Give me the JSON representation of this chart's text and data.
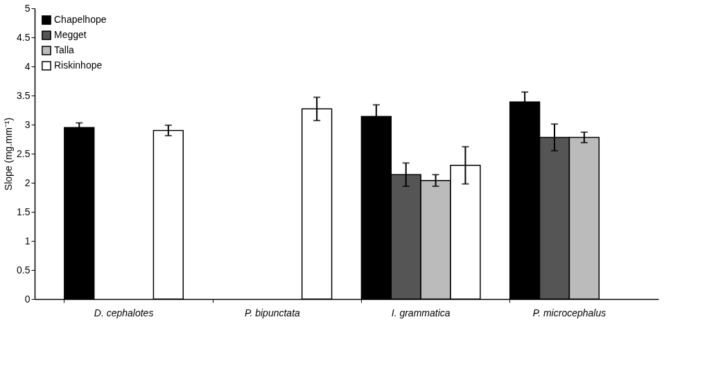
{
  "chart_data": {
    "type": "bar",
    "ylabel": "Slope (mg.mm⁻¹)",
    "categories": [
      "D. cephalotes",
      "P. bipunctata",
      "I. grammatica",
      "P. microcephalus"
    ],
    "series": [
      {
        "name": "Chapelhope",
        "color": "#000000",
        "values": [
          2.95,
          null,
          3.14,
          3.39
        ],
        "errors": [
          0.08,
          null,
          0.2,
          0.17
        ]
      },
      {
        "name": "Megget",
        "color": "#555555",
        "values": [
          null,
          null,
          2.14,
          2.78
        ],
        "errors": [
          null,
          null,
          0.2,
          0.23
        ]
      },
      {
        "name": "Talla",
        "color": "#bbbbbb",
        "values": [
          null,
          null,
          2.04,
          2.78
        ],
        "errors": [
          null,
          null,
          0.1,
          0.09
        ]
      },
      {
        "name": "Riskinhope",
        "color": "#ffffff",
        "values": [
          2.9,
          3.27,
          2.3,
          null
        ],
        "errors": [
          0.09,
          0.2,
          0.32,
          null
        ]
      }
    ],
    "ylim": [
      0,
      5
    ],
    "yticks": [
      0,
      0.5,
      1,
      1.5,
      2,
      2.5,
      3,
      3.5,
      4,
      4.5,
      5
    ],
    "grid": false,
    "legend": "top left"
  }
}
